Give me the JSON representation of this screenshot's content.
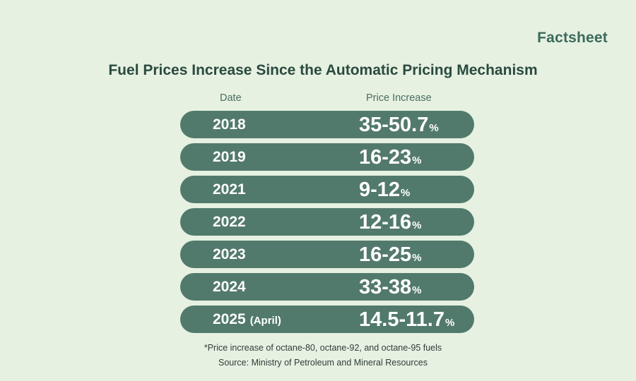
{
  "brand": "Factsheet",
  "chart_data": {
    "type": "table",
    "title": "Fuel Prices Increase Since the Automatic Pricing Mechanism",
    "columns": [
      "Date",
      "Price Increase"
    ],
    "rows": [
      {
        "year": "2018",
        "note": "",
        "range": "35-50.7",
        "unit": "%"
      },
      {
        "year": "2019",
        "note": "",
        "range": "16-23",
        "unit": "%"
      },
      {
        "year": "2021",
        "note": "",
        "range": "9-12",
        "unit": "%"
      },
      {
        "year": "2022",
        "note": "",
        "range": "12-16",
        "unit": "%"
      },
      {
        "year": "2023",
        "note": "",
        "range": "16-25",
        "unit": "%"
      },
      {
        "year": "2024",
        "note": "",
        "range": "33-38",
        "unit": "%"
      },
      {
        "year": "2025",
        "note": "(April)",
        "range": "14.5-11.7",
        "unit": "%"
      }
    ],
    "footnote": "*Price increase of octane-80, octane-92, and octane-95 fuels",
    "source": "Source: Ministry of Petroleum and Mineral Resources"
  }
}
